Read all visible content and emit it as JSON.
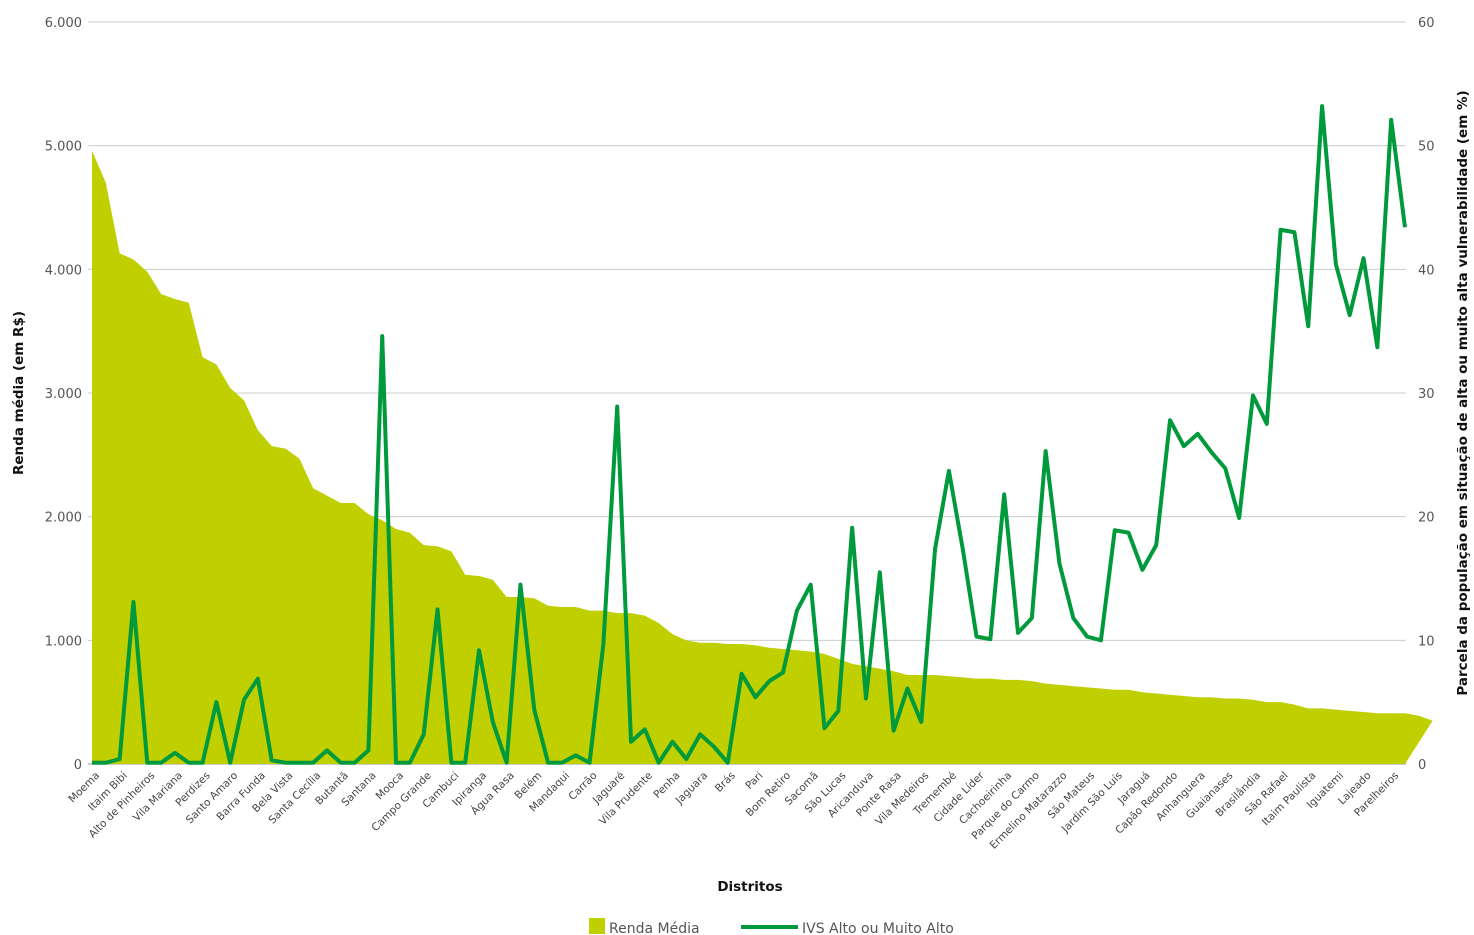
{
  "chart_data": {
    "type": "area+line",
    "xlabel": "Distritos",
    "ylabel_left": "Renda média (em R$)",
    "ylabel_right": "Parcela  da população  em situação  de alta ou muito alta vulnerabilidade  (em %)",
    "ylim_left": [
      0,
      6000
    ],
    "ylim_right": [
      0,
      60
    ],
    "yticks_left": [
      "0",
      "1.000",
      "2.000",
      "3.000",
      "4.000",
      "5.000",
      "6.000"
    ],
    "yticks_right": [
      "0",
      "10",
      "20",
      "30",
      "40",
      "50",
      "60"
    ],
    "grid": true,
    "legend_position": "bottom",
    "colors": {
      "area": "#bfcf00",
      "line": "#00993c",
      "grid": "#cccccc"
    },
    "tick_labels": [
      "Moema",
      "Itaim Bibi",
      "Alto de Pinheiros",
      "Vila Mariana",
      "Perdizes",
      "Santo Amaro",
      "Barra Funda",
      "Bela Vista",
      "Santa Cecília",
      "Butantã",
      "Santana",
      "Mooca",
      "Campo Grande",
      "Cambuci",
      "Ipiranga",
      "Água Rasa",
      "Belém",
      "Mandaqui",
      "Carrão",
      "Jaguaré",
      "Vila Prudente",
      "Penha",
      "Jaguara",
      "Brás",
      "Pari",
      "Bom Retiro",
      "Sacomã",
      "São Lucas",
      "Aricanduva",
      "Ponte Rasa",
      "Vila Medeiros",
      "Tremembé",
      "Cidade Líder",
      "Cachoeirinha",
      "Parque do Carmo",
      "Ermelino Matarazzo",
      "São Mateus",
      "Jardim São Luís",
      "Jaraguá",
      "Capão Redondo",
      "Anhanguera",
      "Guaianases",
      "Brasilândia",
      "São Rafael",
      "Itaim Paulista",
      "Iguatemi",
      "Lajeado",
      "Parelheiros"
    ],
    "n_points": 96,
    "series": [
      {
        "name": "Renda Média",
        "type": "area",
        "axis": "left",
        "values": [
          4960,
          4700,
          4130,
          4080,
          3980,
          3800,
          3760,
          3730,
          3290,
          3230,
          3040,
          2940,
          2700,
          2570,
          2550,
          2470,
          2230,
          2170,
          2110,
          2110,
          2020,
          1970,
          1900,
          1870,
          1770,
          1760,
          1720,
          1530,
          1520,
          1490,
          1350,
          1350,
          1340,
          1280,
          1270,
          1270,
          1240,
          1240,
          1220,
          1220,
          1200,
          1140,
          1050,
          1000,
          980,
          980,
          970,
          970,
          960,
          940,
          930,
          920,
          910,
          890,
          850,
          810,
          790,
          770,
          750,
          720,
          720,
          720,
          710,
          700,
          690,
          690,
          680,
          680,
          670,
          650,
          640,
          630,
          620,
          610,
          600,
          600,
          580,
          570,
          560,
          550,
          540,
          540,
          530,
          530,
          520,
          500,
          500,
          480,
          450,
          450,
          440,
          430,
          420,
          410,
          410,
          410,
          390,
          350
        ]
      },
      {
        "name": "IVS Alto ou Muito Alto",
        "type": "line",
        "axis": "right",
        "values": [
          0.1,
          0.1,
          0.4,
          13.1,
          0.1,
          0.1,
          0.9,
          0.1,
          0.1,
          5.0,
          0.1,
          5.2,
          6.9,
          0.3,
          0.1,
          0.1,
          0.1,
          1.1,
          0.1,
          0.1,
          1.1,
          34.6,
          0.1,
          0.1,
          2.4,
          12.5,
          0.1,
          0.1,
          9.2,
          3.4,
          0.1,
          14.5,
          4.4,
          0.1,
          0.1,
          0.7,
          0.1,
          9.7,
          28.9,
          1.8,
          2.8,
          0.1,
          1.8,
          0.4,
          2.4,
          1.4,
          0.1,
          7.3,
          5.4,
          6.7,
          7.4,
          12.4,
          14.5,
          2.9,
          4.3,
          19.1,
          5.3,
          15.5,
          2.7,
          6.1,
          3.4,
          17.4,
          23.7,
          17.4,
          10.3,
          10.1,
          21.8,
          10.6,
          11.8,
          25.3,
          16.2,
          11.8,
          10.3,
          10.0,
          18.9,
          18.7,
          15.7,
          17.7,
          27.8,
          25.7,
          26.7,
          25.2,
          23.9,
          19.9,
          29.8,
          27.5,
          43.2,
          43.0,
          35.4,
          53.2,
          40.4,
          36.3,
          40.9,
          33.7,
          52.1,
          43.4
        ]
      }
    ],
    "legend": [
      "Renda Média",
      "IVS Alto ou Muito Alto"
    ]
  }
}
